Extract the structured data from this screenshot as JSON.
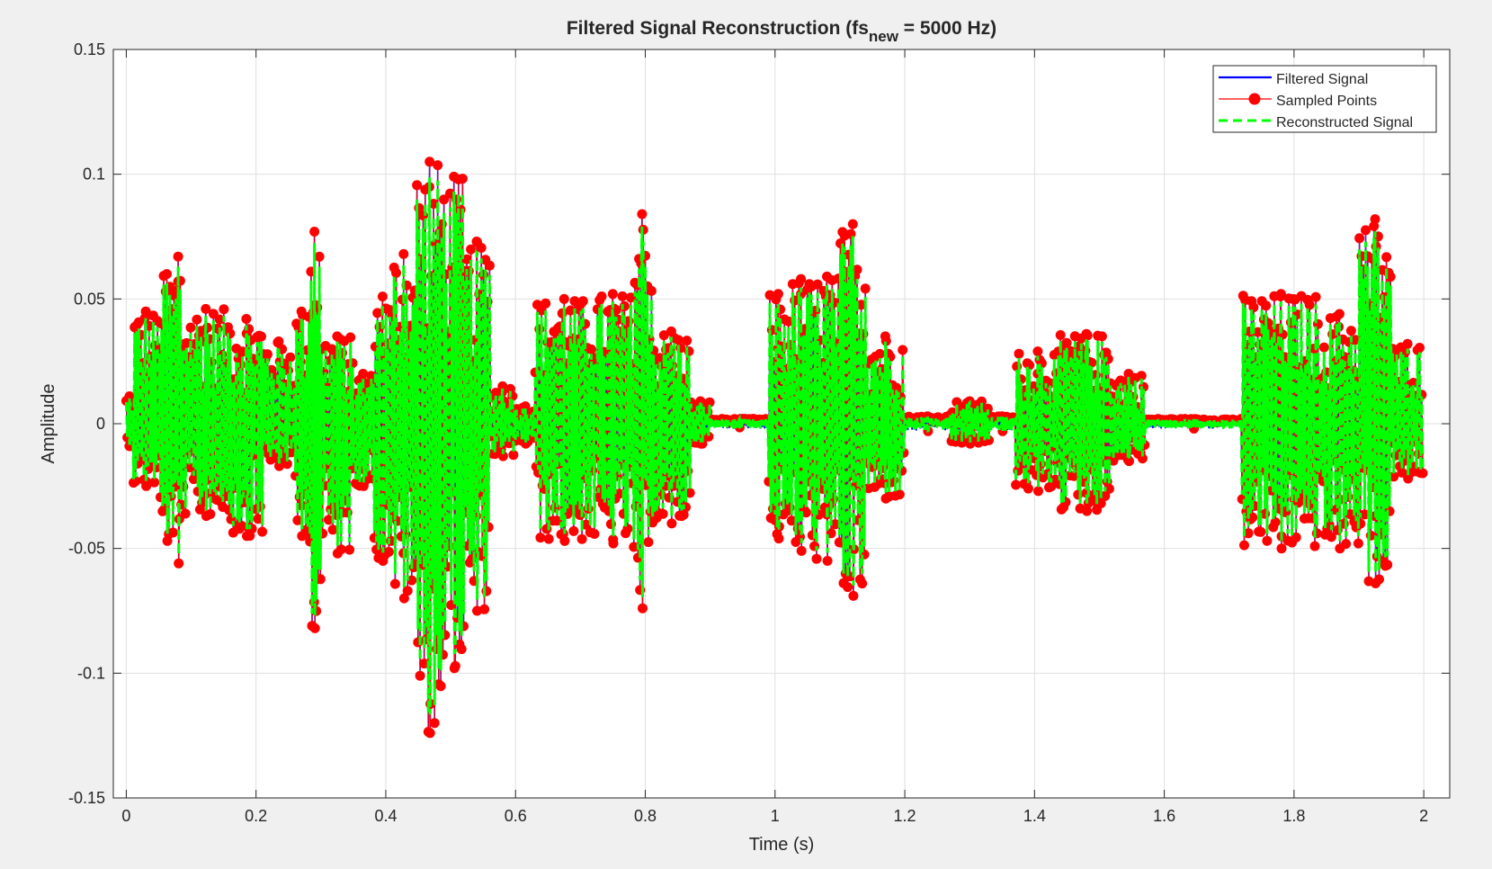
{
  "chart_data": {
    "type": "line",
    "title": "Filtered Signal Reconstruction (fs",
    "title_subscript": "new",
    "title_suffix": " = 5000 Hz)",
    "xlabel": "Time (s)",
    "ylabel": "Amplitude",
    "xlim": [
      -0.02,
      2.04
    ],
    "ylim": [
      -0.15,
      0.15
    ],
    "xticks": [
      0,
      0.2,
      0.4,
      0.6,
      0.8,
      1,
      1.2,
      1.4,
      1.6,
      1.8,
      2
    ],
    "xtick_labels": [
      "0",
      "0.2",
      "0.4",
      "0.6",
      "0.8",
      "1",
      "1.2",
      "1.4",
      "1.6",
      "1.8",
      "2"
    ],
    "yticks": [
      0.15,
      0.1,
      0.05,
      0,
      -0.05,
      -0.1,
      -0.15
    ],
    "ytick_labels": [
      "0.15",
      "0.1",
      "0.05",
      "0",
      "-0.05",
      "-0.1",
      "-0.15"
    ],
    "grid": true,
    "legend_position": "top-right",
    "colors": {
      "filtered": "#0000ff",
      "sampled": "#ff0000",
      "reconstructed": "#00ff00",
      "axes_background": "#ffffff",
      "figure_background": "#f0f0f0",
      "grid": "#dfdfdf"
    },
    "series": [
      {
        "name": "Filtered Signal",
        "style": "solid line"
      },
      {
        "name": "Sampled Points",
        "style": "line with filled circle markers"
      },
      {
        "name": "Reconstructed Signal",
        "style": "dashed line"
      }
    ],
    "envelope_segments": [
      {
        "t": [
          0.0,
          0.01
        ],
        "max": 0.011,
        "min": -0.009
      },
      {
        "t": [
          0.01,
          0.05
        ],
        "max": 0.045,
        "min": -0.025
      },
      {
        "t": [
          0.05,
          0.075
        ],
        "max": 0.06,
        "min": -0.047
      },
      {
        "t": [
          0.075,
          0.085
        ],
        "max": 0.067,
        "min": -0.056
      },
      {
        "t": [
          0.085,
          0.16
        ],
        "max": 0.046,
        "min": -0.037
      },
      {
        "t": [
          0.16,
          0.21
        ],
        "max": 0.042,
        "min": -0.045
      },
      {
        "t": [
          0.21,
          0.26
        ],
        "max": 0.033,
        "min": -0.017
      },
      {
        "t": [
          0.26,
          0.28
        ],
        "max": 0.045,
        "min": -0.045
      },
      {
        "t": [
          0.28,
          0.3
        ],
        "max": 0.077,
        "min": -0.082
      },
      {
        "t": [
          0.3,
          0.35
        ],
        "max": 0.035,
        "min": -0.052
      },
      {
        "t": [
          0.35,
          0.38
        ],
        "max": 0.02,
        "min": -0.025
      },
      {
        "t": [
          0.38,
          0.41
        ],
        "max": 0.051,
        "min": -0.055
      },
      {
        "t": [
          0.41,
          0.445
        ],
        "max": 0.068,
        "min": -0.07
      },
      {
        "t": [
          0.445,
          0.49
        ],
        "max": 0.105,
        "min": -0.124
      },
      {
        "t": [
          0.49,
          0.52
        ],
        "max": 0.099,
        "min": -0.098
      },
      {
        "t": [
          0.52,
          0.56
        ],
        "max": 0.073,
        "min": -0.075
      },
      {
        "t": [
          0.56,
          0.6
        ],
        "max": 0.015,
        "min": -0.013
      },
      {
        "t": [
          0.6,
          0.63
        ],
        "max": 0.007,
        "min": -0.008
      },
      {
        "t": [
          0.63,
          0.72
        ],
        "max": 0.05,
        "min": -0.047
      },
      {
        "t": [
          0.72,
          0.78
        ],
        "max": 0.052,
        "min": -0.048
      },
      {
        "t": [
          0.78,
          0.81
        ],
        "max": 0.084,
        "min": -0.074
      },
      {
        "t": [
          0.81,
          0.87
        ],
        "max": 0.037,
        "min": -0.04
      },
      {
        "t": [
          0.87,
          0.9
        ],
        "max": 0.009,
        "min": -0.008
      },
      {
        "t": [
          0.9,
          0.99
        ],
        "max": 0.002,
        "min": -0.002
      },
      {
        "t": [
          0.99,
          1.02
        ],
        "max": 0.052,
        "min": -0.046
      },
      {
        "t": [
          1.02,
          1.06
        ],
        "max": 0.058,
        "min": -0.051
      },
      {
        "t": [
          1.06,
          1.1
        ],
        "max": 0.059,
        "min": -0.055
      },
      {
        "t": [
          1.1,
          1.14
        ],
        "max": 0.08,
        "min": -0.069
      },
      {
        "t": [
          1.14,
          1.2
        ],
        "max": 0.035,
        "min": -0.03
      },
      {
        "t": [
          1.2,
          1.27
        ],
        "max": 0.003,
        "min": -0.003
      },
      {
        "t": [
          1.27,
          1.33
        ],
        "max": 0.009,
        "min": -0.008
      },
      {
        "t": [
          1.33,
          1.37
        ],
        "max": 0.003,
        "min": -0.003
      },
      {
        "t": [
          1.37,
          1.44
        ],
        "max": 0.029,
        "min": -0.027
      },
      {
        "t": [
          1.44,
          1.52
        ],
        "max": 0.036,
        "min": -0.035
      },
      {
        "t": [
          1.52,
          1.57
        ],
        "max": 0.02,
        "min": -0.015
      },
      {
        "t": [
          1.57,
          1.72
        ],
        "max": 0.002,
        "min": -0.002
      },
      {
        "t": [
          1.72,
          1.84
        ],
        "max": 0.052,
        "min": -0.05
      },
      {
        "t": [
          1.84,
          1.9
        ],
        "max": 0.044,
        "min": -0.05
      },
      {
        "t": [
          1.9,
          1.95
        ],
        "max": 0.082,
        "min": -0.064
      },
      {
        "t": [
          1.95,
          2.0
        ],
        "max": 0.032,
        "min": -0.022
      }
    ]
  }
}
